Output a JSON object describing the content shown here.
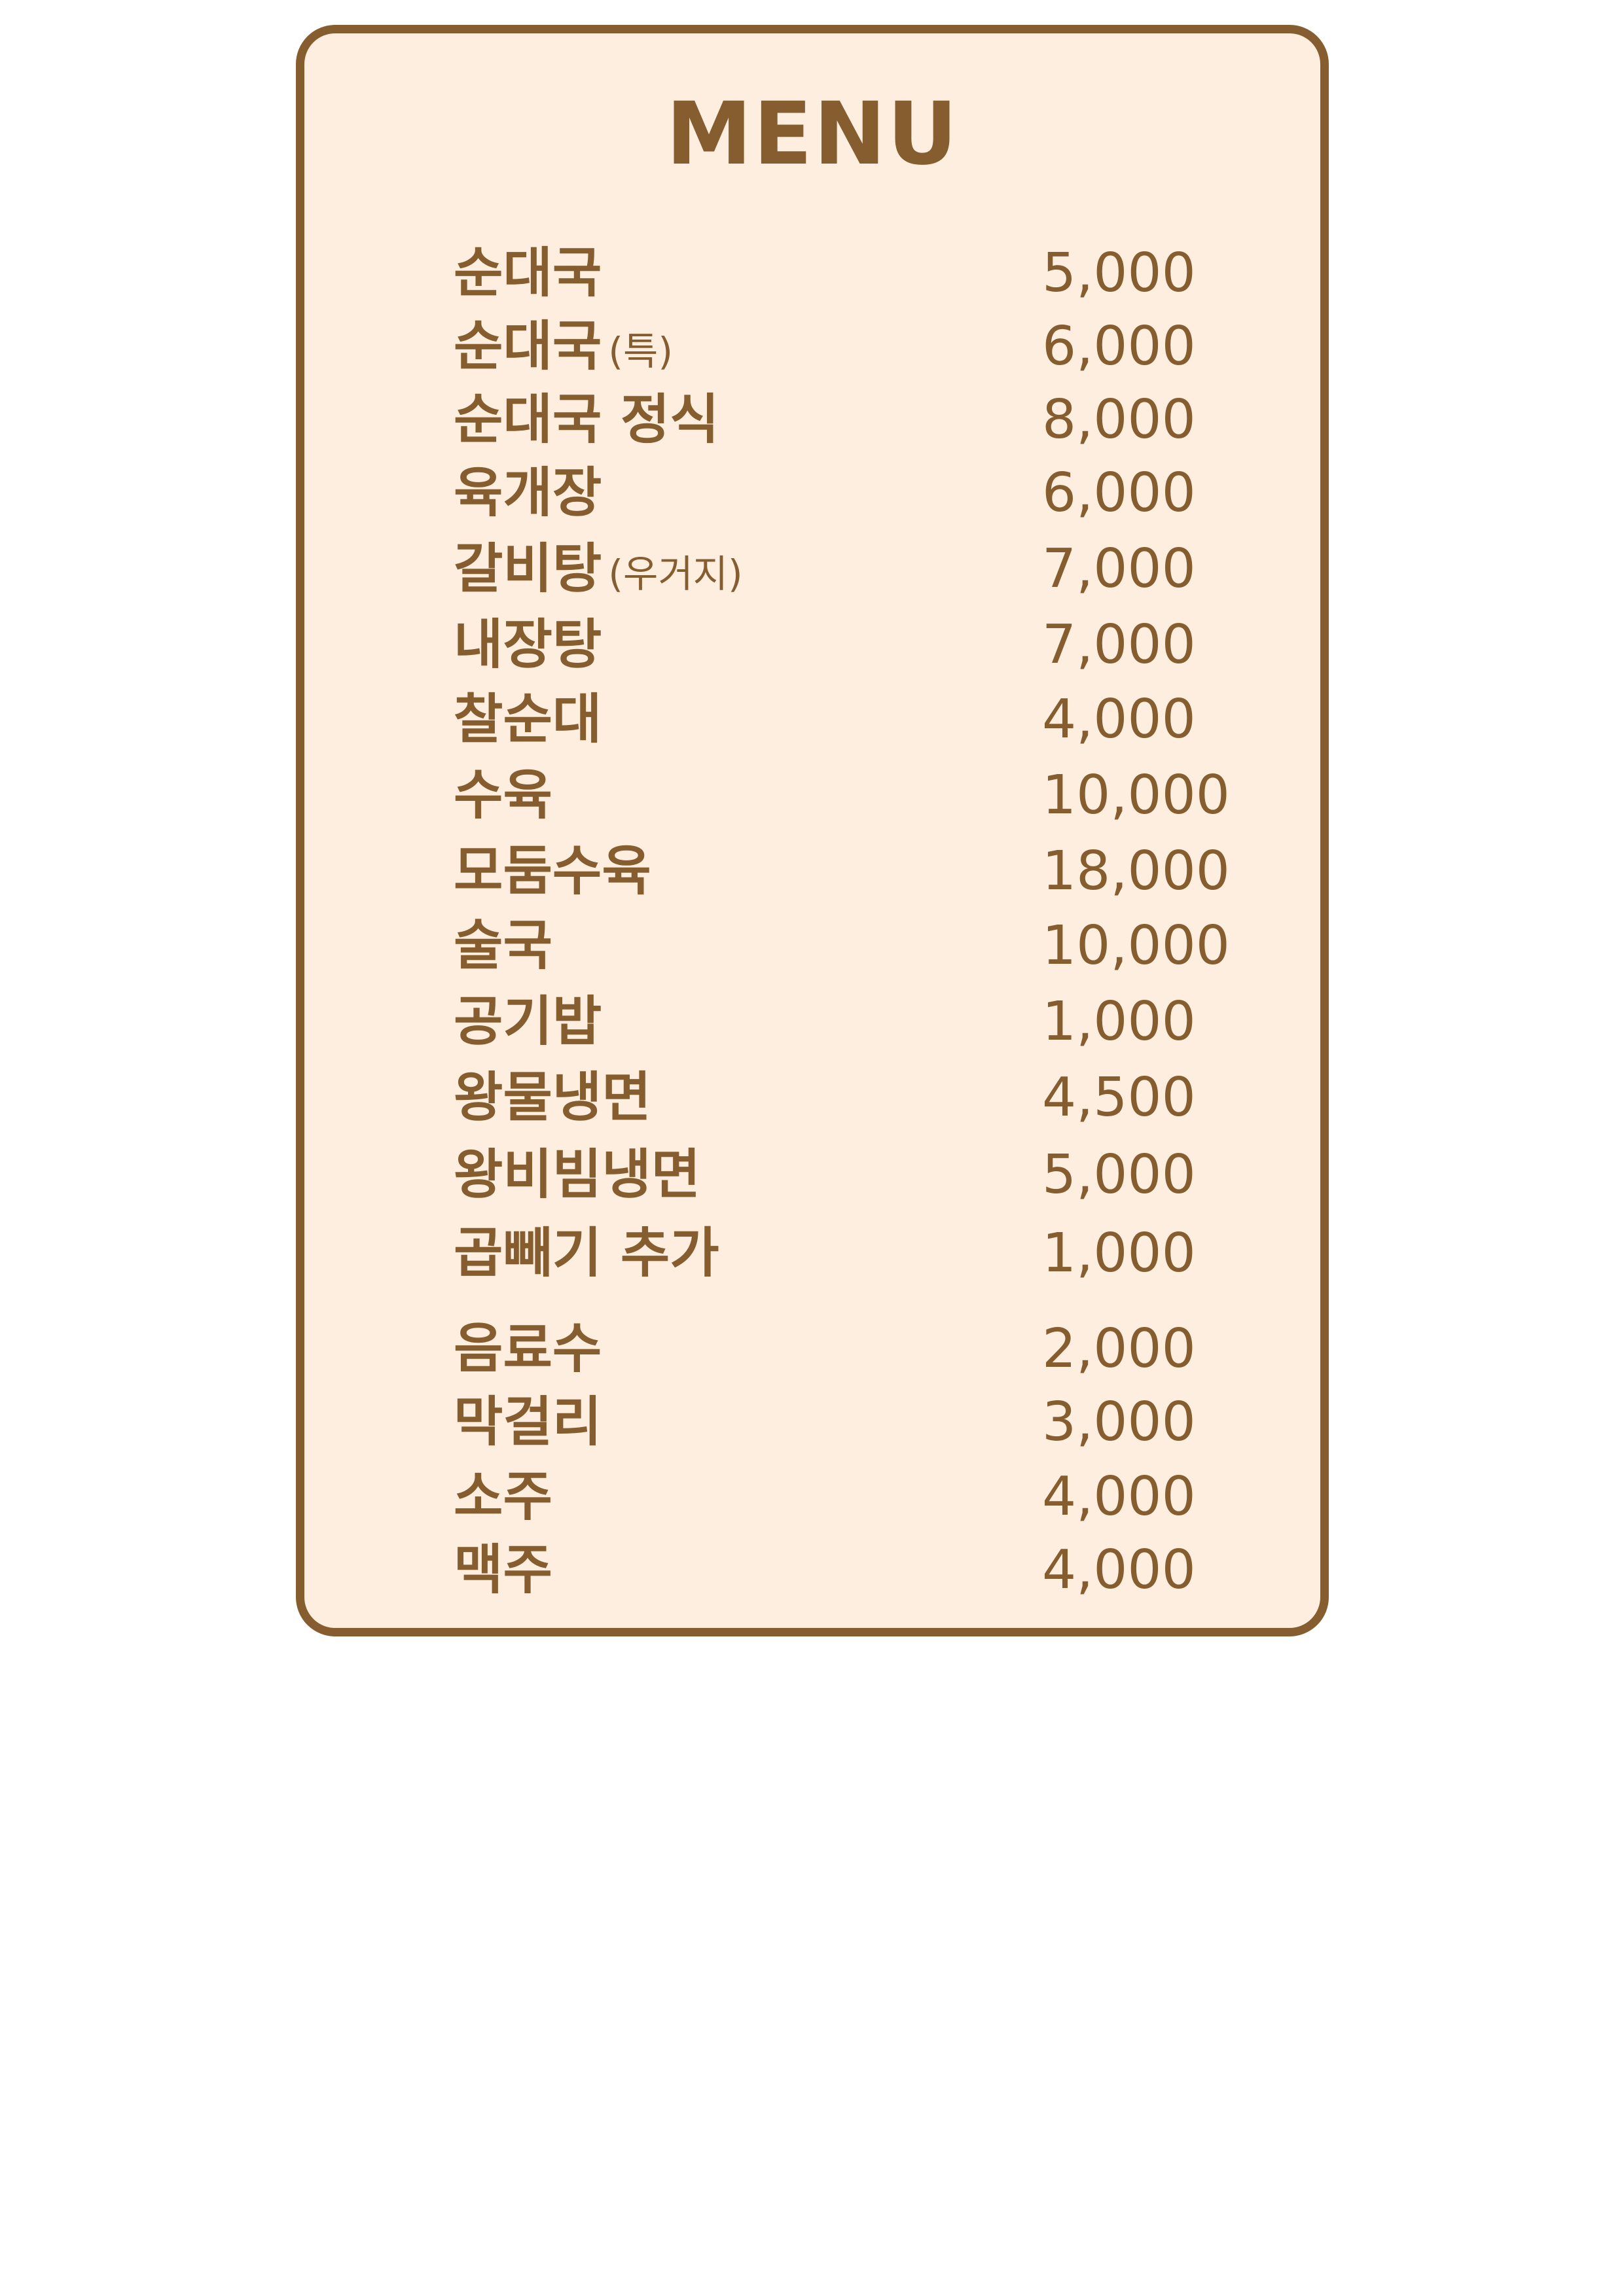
{
  "menu": {
    "title": "MENU",
    "items": [
      {
        "name": "순대국",
        "note": "",
        "price": "5,000"
      },
      {
        "name": "순대국",
        "note": "(특)",
        "price": "6,000"
      },
      {
        "name": "순대국 정식",
        "note": "",
        "price": "8,000"
      },
      {
        "name": "육개장",
        "note": "",
        "price": "6,000"
      },
      {
        "name": "갈비탕",
        "note": "(우거지)",
        "price": "7,000"
      },
      {
        "name": "내장탕",
        "note": "",
        "price": "7,000"
      },
      {
        "name": "찰순대",
        "note": "",
        "price": "4,000"
      },
      {
        "name": "수육",
        "note": "",
        "price": "10,000"
      },
      {
        "name": "모둠수육",
        "note": "",
        "price": "18,000"
      },
      {
        "name": "술국",
        "note": "",
        "price": "10,000"
      },
      {
        "name": "공기밥",
        "note": "",
        "price": "1,000"
      },
      {
        "name": "왕물냉면",
        "note": "",
        "price": "4,500"
      },
      {
        "name": "왕비빔냉면",
        "note": "",
        "price": "5,000"
      },
      {
        "name": "곱빼기 추가",
        "note": "",
        "price": "1,000"
      }
    ],
    "drinks": [
      {
        "name": "음료수",
        "price": "2,000"
      },
      {
        "name": "막걸리",
        "price": "3,000"
      },
      {
        "name": "소주",
        "price": "4,000"
      },
      {
        "name": "맥주",
        "price": "4,000"
      }
    ],
    "colors": {
      "border": "#855d2f",
      "background": "#fdeedf",
      "text": "#855d2f"
    }
  }
}
